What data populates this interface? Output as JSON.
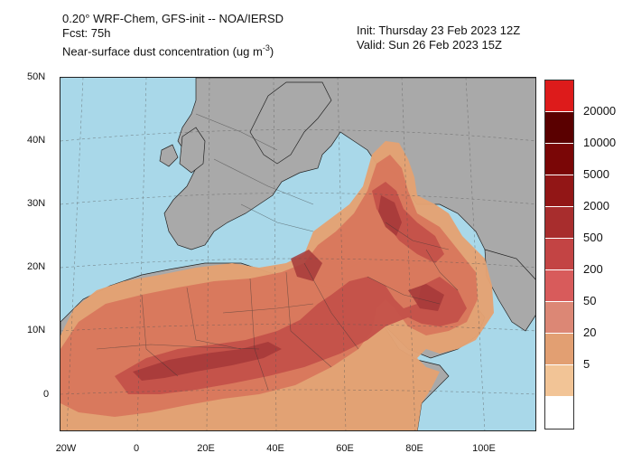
{
  "header": {
    "line1": "0.20° WRF-Chem, GFS-init -- NOA/IERSD",
    "line2": "Fcst: 75h",
    "line3_main": "Near-surface dust concentration (ug m",
    "line3_exp": "-3",
    "line3_end": ")",
    "init": "Init: Thursday 23 Feb 2023  12Z",
    "valid": "Valid: Sun 26 Feb 2023  15Z"
  },
  "axes": {
    "lat_labels": [
      "50N",
      "40N",
      "30N",
      "20N",
      "10N",
      "0"
    ],
    "lon_labels": [
      "20W",
      "0",
      "20E",
      "40E",
      "60E",
      "80E",
      "100E"
    ]
  },
  "colorbar": {
    "colors": [
      "#dd1b1b",
      "#5a0000",
      "#7a0606",
      "#921616",
      "#a82d2d",
      "#c34444",
      "#d85b5b",
      "#dc8775",
      "#e29f72",
      "#f2c496",
      "#ffffff"
    ],
    "labels": [
      "20000",
      "10000",
      "5000",
      "2000",
      "500",
      "200",
      "50",
      "20",
      "5"
    ]
  },
  "map_colors": {
    "ocean": "#a9d8e9",
    "land": "#a9a9a9",
    "dust_low": "#e4a273",
    "dust_mid": "#d9785c",
    "dust_high": "#c45149",
    "dust_peak": "#a63a3a"
  }
}
